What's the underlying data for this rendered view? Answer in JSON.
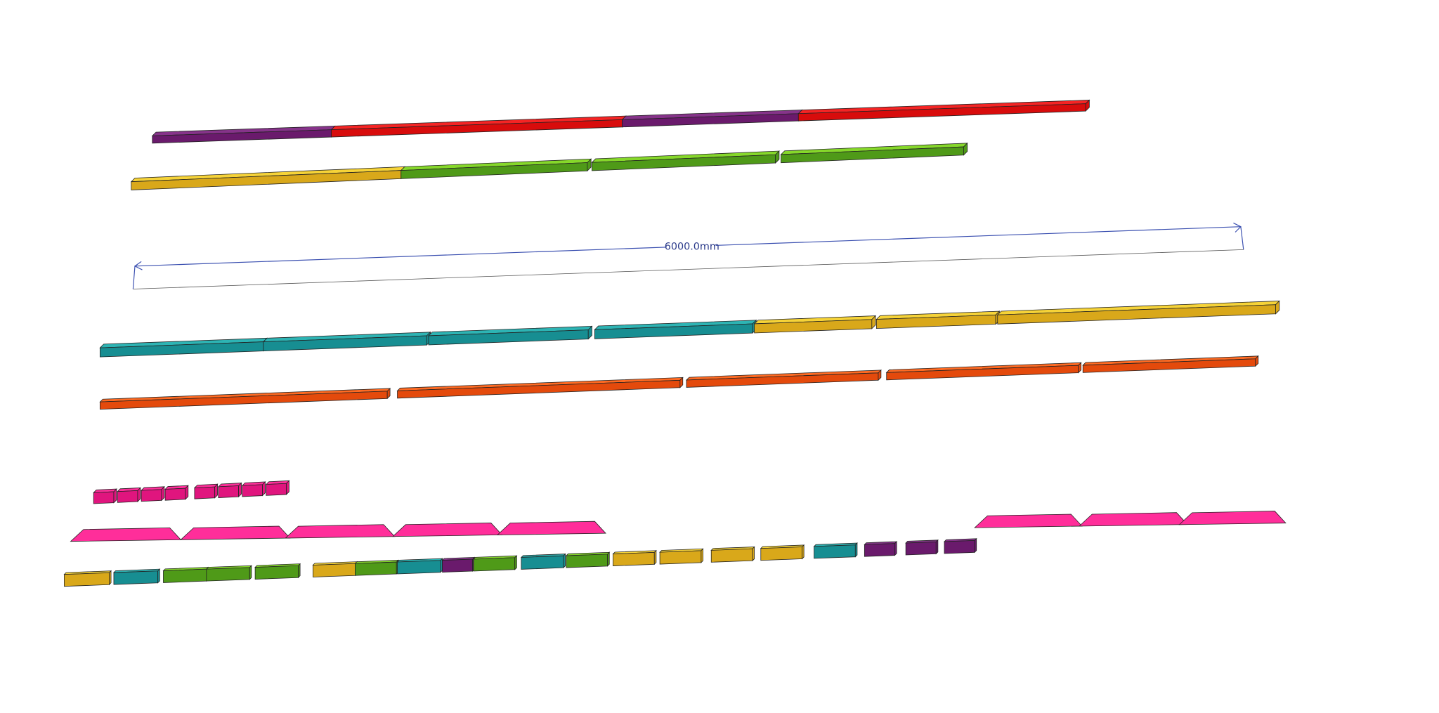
{
  "dimension": {
    "label": "6000.0mm"
  }
}
